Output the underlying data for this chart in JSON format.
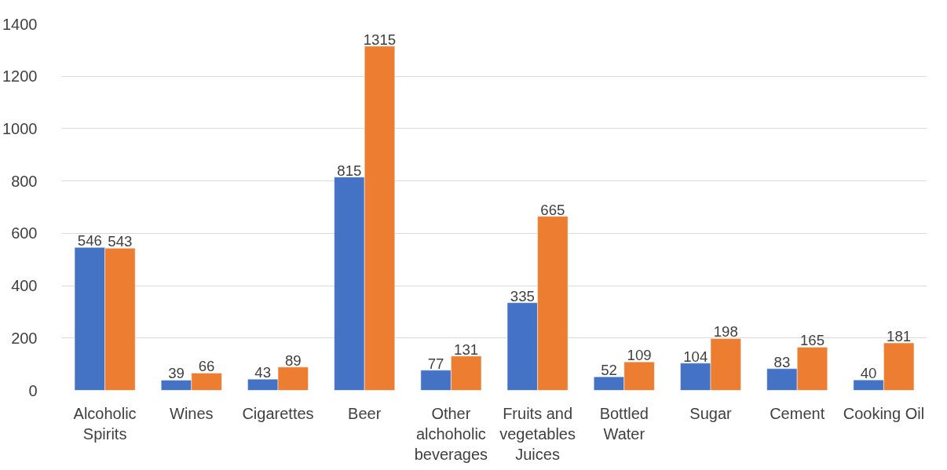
{
  "chart_data": {
    "type": "bar",
    "categories": [
      "Alcoholic Spirits",
      "Wines",
      "Cigarettes",
      "Beer",
      "Other alchoholic beverages",
      "Fruits and vegetables Juices",
      "Bottled Water",
      "Sugar",
      "Cement",
      "Cooking Oil"
    ],
    "series": [
      {
        "color": "#4472c4",
        "values": [
          546,
          39,
          43,
          815,
          77,
          335,
          52,
          104,
          83,
          40
        ]
      },
      {
        "color": "#ed7d31",
        "values": [
          543,
          66,
          89,
          1315,
          131,
          665,
          109,
          198,
          165,
          181
        ]
      }
    ],
    "ylim": [
      0,
      1400
    ],
    "yticks": [
      0,
      200,
      400,
      600,
      800,
      1000,
      1200,
      1400
    ],
    "grid": "y",
    "data_labels": true
  }
}
